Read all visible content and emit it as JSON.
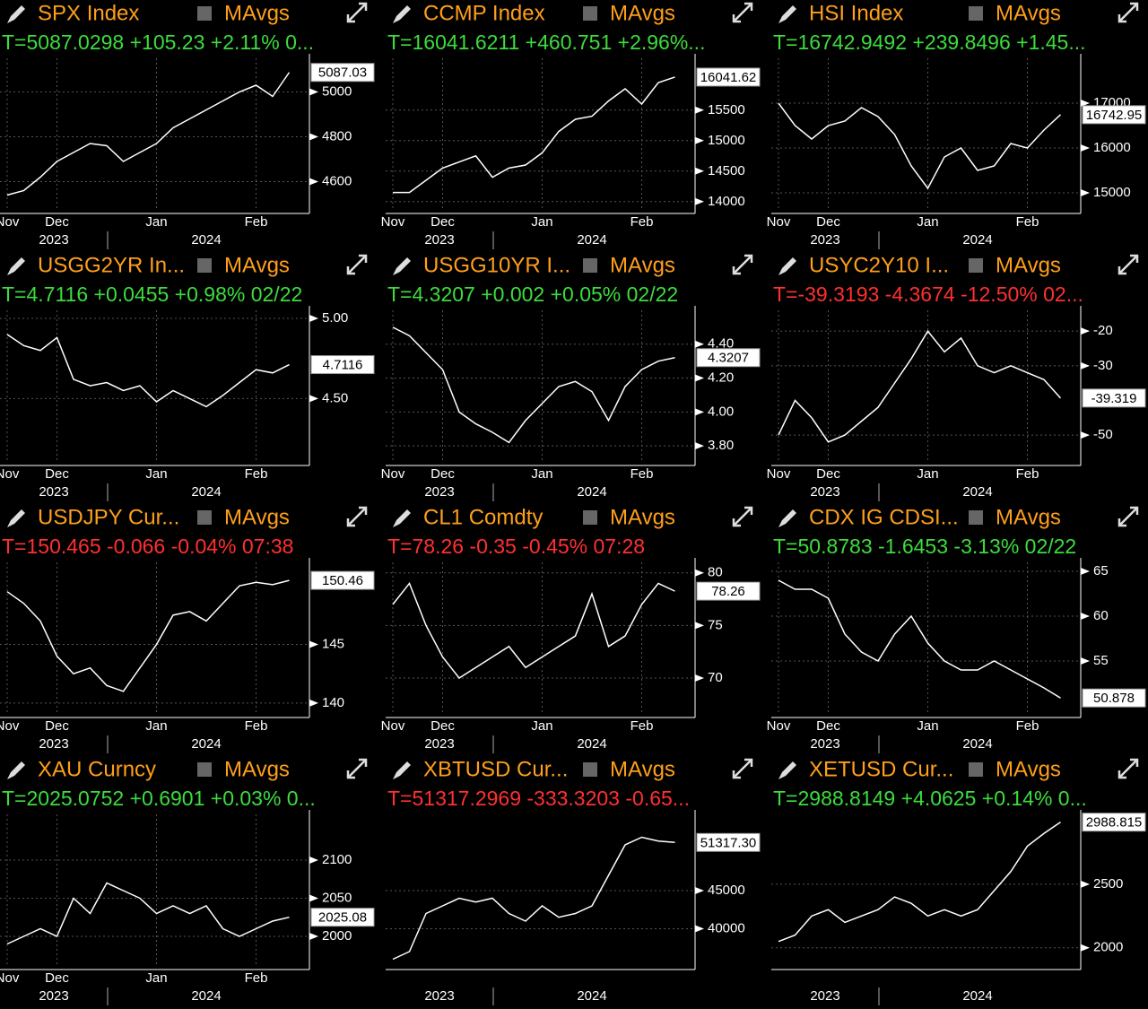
{
  "chart_data": [
    {
      "type": "line",
      "title": "SPX Index",
      "legend": "MAvgs",
      "quote": "T=5087.0298 +105.23 +2.11% 0...",
      "quote_color": "green",
      "categories": [
        "Nov",
        null,
        null,
        "Dec",
        null,
        null,
        null,
        null,
        null,
        "Jan",
        null,
        null,
        null,
        null,
        null,
        "Feb",
        null,
        null
      ],
      "year_labels": [
        "2023",
        "2024"
      ],
      "values": [
        4540,
        4560,
        4620,
        4690,
        4730,
        4770,
        4760,
        4690,
        4730,
        4770,
        4840,
        4880,
        4920,
        4960,
        5000,
        5030,
        4980,
        5087.03
      ],
      "last_label": "5087.03",
      "ylim": [
        4470,
        5150
      ],
      "yticks": [
        4600,
        4800,
        5000
      ],
      "grid": true,
      "color": "#ffffff"
    },
    {
      "type": "line",
      "title": "CCMP Index",
      "legend": "MAvgs",
      "quote": "T=16041.6211 +460.751 +2.96%...",
      "quote_color": "green",
      "categories": [
        "Nov",
        null,
        null,
        "Dec",
        null,
        null,
        null,
        null,
        null,
        "Jan",
        null,
        null,
        null,
        null,
        null,
        "Feb",
        null,
        null
      ],
      "year_labels": [
        "2023",
        "2024"
      ],
      "values": [
        14150,
        14150,
        14350,
        14550,
        14650,
        14750,
        14400,
        14550,
        14600,
        14800,
        15150,
        15350,
        15400,
        15650,
        15850,
        15600,
        15950,
        16041.62
      ],
      "last_label": "16041.62",
      "ylim": [
        13850,
        16350
      ],
      "yticks": [
        14000,
        14500,
        15000,
        15500
      ],
      "grid": true,
      "color": "#ffffff"
    },
    {
      "type": "line",
      "title": "HSI Index",
      "legend": "MAvgs",
      "quote": "T=16742.9492 +239.8496 +1.45...",
      "quote_color": "green",
      "categories": [
        "Nov",
        null,
        null,
        "Dec",
        null,
        null,
        null,
        null,
        null,
        "Jan",
        null,
        null,
        null,
        null,
        null,
        "Feb",
        null,
        null
      ],
      "year_labels": [
        "2023",
        "2024"
      ],
      "values": [
        17000,
        16500,
        16200,
        16500,
        16600,
        16900,
        16700,
        16300,
        15600,
        15100,
        15800,
        16000,
        15500,
        15600,
        16100,
        16000,
        16400,
        16742.95
      ],
      "last_label": "16742.95",
      "ylim": [
        14600,
        18000
      ],
      "yticks": [
        15000,
        16000,
        17000
      ],
      "grid": true,
      "color": "#ffffff"
    },
    {
      "type": "line",
      "title": "USGG2YR In...",
      "legend": "MAvgs",
      "quote": "T=4.7116 +0.0455 +0.98% 02/22",
      "quote_color": "green",
      "categories": [
        "Nov",
        null,
        null,
        "Dec",
        null,
        null,
        null,
        null,
        null,
        "Jan",
        null,
        null,
        null,
        null,
        null,
        "Feb",
        null,
        null
      ],
      "year_labels": [
        "2023",
        "2024"
      ],
      "values": [
        4.9,
        4.83,
        4.8,
        4.88,
        4.62,
        4.58,
        4.6,
        4.55,
        4.58,
        4.48,
        4.55,
        4.5,
        4.45,
        4.52,
        4.6,
        4.68,
        4.66,
        4.7116
      ],
      "last_label": "4.7116",
      "ylim": [
        4.1,
        5.05
      ],
      "yticks": [
        {
          "value": 4.5,
          "label": "4.50"
        },
        {
          "value": 5,
          "label": "5.00"
        }
      ],
      "grid": true,
      "color": "#ffffff"
    },
    {
      "type": "line",
      "title": "USGG10YR I...",
      "legend": "MAvgs",
      "quote": "T=4.3207 +0.002 +0.05% 02/22",
      "quote_color": "green",
      "categories": [
        "Nov",
        null,
        null,
        "Dec",
        null,
        null,
        null,
        null,
        null,
        "Jan",
        null,
        null,
        null,
        null,
        null,
        "Feb",
        null,
        null
      ],
      "year_labels": [
        "2023",
        "2024"
      ],
      "values": [
        4.5,
        4.45,
        4.35,
        4.25,
        4.0,
        3.93,
        3.88,
        3.82,
        3.95,
        4.05,
        4.15,
        4.18,
        4.12,
        3.95,
        4.15,
        4.25,
        4.3,
        4.3207
      ],
      "last_label": "4.3207",
      "ylim": [
        3.7,
        4.6
      ],
      "yticks": [
        {
          "value": 3.8,
          "label": "3.80"
        },
        {
          "value": 4,
          "label": "4.00"
        },
        {
          "value": 4.2,
          "label": "4.20"
        },
        {
          "value": 4.4,
          "label": "4.40"
        }
      ],
      "grid": true,
      "color": "#ffffff"
    },
    {
      "type": "line",
      "title": "USYC2Y10 I...",
      "legend": "MAvgs",
      "quote": "T=-39.3193 -4.3674 -12.50% 02...",
      "quote_color": "red",
      "categories": [
        "Nov",
        null,
        null,
        "Dec",
        null,
        null,
        null,
        null,
        null,
        "Jan",
        null,
        null,
        null,
        null,
        null,
        "Feb",
        null,
        null
      ],
      "year_labels": [
        "2023",
        "2024"
      ],
      "values": [
        -50,
        -40,
        -45,
        -52,
        -50,
        -46,
        -42,
        -35,
        -28,
        -20,
        -26,
        -22,
        -30,
        -32,
        -30,
        -32,
        -34,
        -39.319
      ],
      "last_label": "-39.319",
      "ylim": [
        -58,
        -14
      ],
      "yticks": [
        -50,
        -30,
        -20
      ],
      "grid": true,
      "color": "#ffffff"
    },
    {
      "type": "line",
      "title": "USDJPY Cur...",
      "legend": "MAvgs",
      "quote": "T=150.465 -0.066 -0.04% 07:38",
      "quote_color": "red",
      "categories": [
        "Nov",
        null,
        null,
        "Dec",
        null,
        null,
        null,
        null,
        null,
        "Jan",
        null,
        null,
        null,
        null,
        null,
        "Feb",
        null,
        null
      ],
      "year_labels": [
        "2023",
        "2024"
      ],
      "values": [
        149.5,
        148.5,
        147,
        144,
        142.5,
        143,
        141.5,
        141,
        143,
        145,
        147.5,
        147.8,
        147,
        148.5,
        150,
        150.3,
        150.1,
        150.46
      ],
      "last_label": "150.46",
      "ylim": [
        139,
        152
      ],
      "yticks": [
        140,
        145
      ],
      "grid": true,
      "color": "#ffffff"
    },
    {
      "type": "line",
      "title": "CL1 Comdty",
      "legend": "MAvgs",
      "quote": "T=78.26 -0.35 -0.45% 07:28",
      "quote_color": "red",
      "categories": [
        "Nov",
        null,
        null,
        "Dec",
        null,
        null,
        null,
        null,
        null,
        "Jan",
        null,
        null,
        null,
        null,
        null,
        "Feb",
        null,
        null
      ],
      "year_labels": [
        "2023",
        "2024"
      ],
      "values": [
        77,
        79,
        75,
        72,
        70,
        71,
        72,
        73,
        71,
        72,
        73,
        74,
        78,
        73,
        74,
        77,
        79,
        78.26
      ],
      "last_label": "78.26",
      "ylim": [
        66.5,
        81
      ],
      "yticks": [
        70,
        75,
        80
      ],
      "grid": true,
      "color": "#ffffff"
    },
    {
      "type": "line",
      "title": "CDX IG CDSI...",
      "legend": "MAvgs",
      "quote": "T=50.8783 -1.6453 -3.13% 02/22",
      "quote_color": "green",
      "categories": [
        "Nov",
        null,
        null,
        "Dec",
        null,
        null,
        null,
        null,
        null,
        "Jan",
        null,
        null,
        null,
        null,
        null,
        "Feb",
        null,
        null
      ],
      "year_labels": [
        "2023",
        "2024"
      ],
      "values": [
        64,
        63,
        63,
        62,
        58,
        56,
        55,
        58,
        60,
        57,
        55,
        54,
        54,
        55,
        54,
        53,
        52,
        50.878
      ],
      "last_label": "50.878",
      "ylim": [
        49,
        66
      ],
      "yticks": [
        55,
        60,
        65
      ],
      "grid": true,
      "color": "#ffffff"
    },
    {
      "type": "line",
      "title": "XAU Curncy",
      "legend": "MAvgs",
      "quote": "T=2025.0752 +0.6901 +0.03% 0...",
      "quote_color": "green",
      "categories": [
        "Nov",
        null,
        null,
        "Dec",
        null,
        null,
        null,
        null,
        null,
        "Jan",
        null,
        null,
        null,
        null,
        null,
        "Feb",
        null,
        null
      ],
      "year_labels": [
        "2023",
        "2024"
      ],
      "values": [
        1990,
        2000,
        2010,
        2000,
        2050,
        2030,
        2070,
        2060,
        2050,
        2030,
        2040,
        2030,
        2040,
        2010,
        2000,
        2010,
        2020,
        2025.08
      ],
      "last_label": "2025.08",
      "ylim": [
        1960,
        2160
      ],
      "yticks": [
        2000,
        2050,
        2100
      ],
      "grid": true,
      "color": "#ffffff"
    },
    {
      "type": "line",
      "title": "XBTUSD Cur...",
      "legend": "MAvgs",
      "quote": "T=51317.2969 -333.3203 -0.65...",
      "quote_color": "red",
      "categories": [
        null,
        null,
        null,
        null,
        null,
        null,
        null,
        null,
        null,
        null,
        null,
        null,
        null,
        null,
        null,
        null,
        null,
        null
      ],
      "year_labels": [
        "2023",
        "2024"
      ],
      "values": [
        36000,
        37000,
        42000,
        43000,
        44000,
        43500,
        44000,
        42000,
        41000,
        43000,
        41500,
        42000,
        43000,
        47000,
        51000,
        52000,
        51500,
        51317.3
      ],
      "last_label": "51317.30",
      "ylim": [
        35000,
        55000
      ],
      "yticks": [
        40000,
        45000
      ],
      "grid": true,
      "color": "#ffffff"
    },
    {
      "type": "line",
      "title": "XETUSD Cur...",
      "legend": "MAvgs",
      "quote": "T=2988.8149 +4.0625 +0.14% 0...",
      "quote_color": "green",
      "categories": [
        null,
        null,
        null,
        null,
        null,
        null,
        null,
        null,
        null,
        null,
        null,
        null,
        null,
        null,
        null,
        null,
        null,
        null
      ],
      "year_labels": [
        "2023",
        "2024"
      ],
      "values": [
        2050,
        2100,
        2250,
        2300,
        2200,
        2250,
        2300,
        2400,
        2350,
        2250,
        2300,
        2250,
        2300,
        2450,
        2600,
        2800,
        2900,
        2988.815
      ],
      "last_label": "2988.815",
      "ylim": [
        1850,
        3050
      ],
      "yticks": [
        2000,
        2500
      ],
      "grid": true,
      "color": "#ffffff"
    }
  ]
}
